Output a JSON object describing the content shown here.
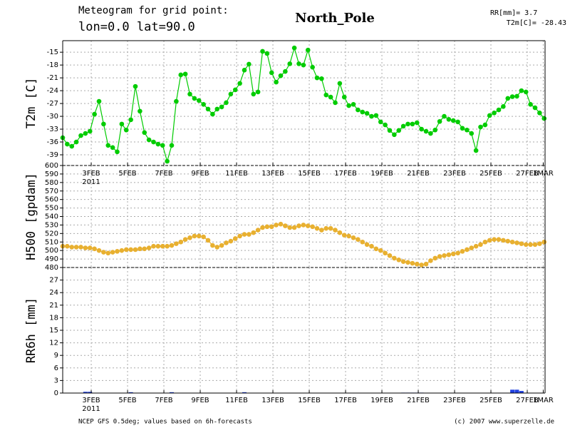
{
  "header": {
    "line1": "Meteogram for grid point:",
    "line2": "lon=0.0 lat=90.0",
    "location": "North_Pole",
    "summary1": "RR[mm]= 3.7",
    "summary2": "T2m[C]= -28.43"
  },
  "footer": {
    "left": "NCEP GFS 0.5deg; values based on 6h-forecasts",
    "right": "(c) 2007 www.superzelle.de"
  },
  "chart_data": {
    "type": "meteogram",
    "year_label": "2011",
    "x": [
      0,
      0.25,
      0.5,
      0.75,
      1,
      1.25,
      1.5,
      1.75,
      2,
      2.25,
      2.5,
      2.75,
      3,
      3.25,
      3.5,
      3.75,
      4,
      4.25,
      4.5,
      4.75,
      5,
      5.25,
      5.5,
      5.75,
      6,
      6.25,
      6.5,
      6.75,
      7,
      7.25,
      7.5,
      7.75,
      8,
      8.25,
      8.5,
      8.75,
      9,
      9.25,
      9.5,
      9.75,
      10,
      10.25,
      10.5,
      10.75,
      11,
      11.25,
      11.5,
      11.75,
      12,
      12.25,
      12.5,
      12.75,
      13,
      13.25,
      13.5,
      13.75,
      14,
      14.25,
      14.5,
      14.75,
      15,
      15.25,
      15.5,
      15.75,
      16,
      16.25,
      16.5,
      16.75,
      17,
      17.25,
      17.5,
      17.75,
      18,
      18.25,
      18.5,
      18.75,
      19,
      19.25,
      19.5,
      19.75,
      20,
      20.25,
      20.5,
      20.75,
      21,
      21.25,
      21.5,
      21.75,
      22,
      22.25,
      22.5,
      22.75,
      23,
      23.25,
      23.5,
      23.75,
      24,
      24.25,
      24.5,
      24.75,
      25,
      25.25,
      25.5,
      25.75,
      26,
      26.25,
      26.5
    ],
    "xlim": [
      0,
      26.55
    ],
    "xticks": [
      {
        "value": 1.57,
        "label": "3FEB"
      },
      {
        "value": 3.57,
        "label": "5FEB"
      },
      {
        "value": 5.57,
        "label": "7FEB"
      },
      {
        "value": 7.57,
        "label": "9FEB"
      },
      {
        "value": 9.57,
        "label": "11FEB"
      },
      {
        "value": 11.57,
        "label": "13FEB"
      },
      {
        "value": 13.57,
        "label": "15FEB"
      },
      {
        "value": 15.57,
        "label": "17FEB"
      },
      {
        "value": 17.57,
        "label": "19FEB"
      },
      {
        "value": 19.57,
        "label": "21FEB"
      },
      {
        "value": 21.57,
        "label": "23FEB"
      },
      {
        "value": 23.57,
        "label": "25FEB"
      },
      {
        "value": 25.57,
        "label": "27FEB"
      },
      {
        "value": 26.45,
        "label": "1MAR"
      }
    ],
    "grid": true,
    "panels": [
      {
        "type": "line",
        "ylabel": "T2m [C]",
        "color": "#00cc00",
        "ylim": [
          -41.5,
          -12.3
        ],
        "yticks": [
          -39,
          -36,
          -33,
          -30,
          -27,
          -24,
          -21,
          -18,
          -15
        ],
        "values": [
          -35,
          -36.5,
          -37,
          -36,
          -34.5,
          -34,
          -33.5,
          -29.5,
          -26.5,
          -31.8,
          -36.8,
          -37.3,
          -38.3,
          -31.8,
          -33.2,
          -30.8,
          -23,
          -28.8,
          -33.8,
          -35.5,
          -36,
          -36.5,
          -36.8,
          -40.5,
          -36.8,
          -26.5,
          -20.3,
          -20.1,
          -24.8,
          -25.8,
          -26.3,
          -27.2,
          -28.3,
          -29.5,
          -28.3,
          -27.8,
          -26.8,
          -24.8,
          -23.8,
          -22.3,
          -19.2,
          -17.8,
          -24.8,
          -24.3,
          -14.8,
          -15.3,
          -19.8,
          -22,
          -20.5,
          -19.5,
          -17.7,
          -14,
          -17.7,
          -18,
          -14.5,
          -18.5,
          -21,
          -21.2,
          -25,
          -25.5,
          -26.8,
          -22.3,
          -25.5,
          -27.5,
          -27.2,
          -28.5,
          -29,
          -29.3,
          -30,
          -29.8,
          -31.3,
          -32,
          -33.3,
          -34.3,
          -33.3,
          -32.3,
          -31.8,
          -31.8,
          -31.5,
          -33,
          -33.5,
          -34,
          -33.2,
          -31.2,
          -30,
          -30.7,
          -31,
          -31.3,
          -32.8,
          -33.2,
          -34,
          -38,
          -32.5,
          -32,
          -29.8,
          -29.2,
          -28.5,
          -27.7,
          -25.8,
          -25.4,
          -25.3,
          -24,
          -24.3,
          -27.2,
          -28,
          -29.2,
          -30.5
        ]
      },
      {
        "type": "line",
        "ylabel": "H500 [gpdam]",
        "color": "#e8b030",
        "ylim": [
          480,
          600
        ],
        "yticks": [
          480,
          490,
          500,
          510,
          520,
          530,
          540,
          550,
          560,
          570,
          580,
          590,
          600
        ],
        "values": [
          505,
          505,
          504,
          504,
          504,
          503,
          503,
          502,
          500,
          498,
          497,
          498,
          499,
          500,
          501,
          501,
          501,
          502,
          502,
          503,
          505,
          505,
          505,
          505,
          506,
          508,
          510,
          513,
          515,
          517,
          517,
          516,
          512,
          506,
          504,
          506,
          509,
          511,
          514,
          517,
          519,
          519,
          521,
          524,
          527,
          528,
          528,
          530,
          531,
          529,
          527,
          527,
          529,
          530,
          529,
          528,
          526,
          524,
          526,
          526,
          524,
          521,
          518,
          517,
          515,
          513,
          510,
          507,
          505,
          502,
          500,
          497,
          494,
          491,
          489,
          487,
          486,
          485,
          484,
          483,
          484,
          488,
          491,
          493,
          494,
          495,
          496,
          497,
          499,
          501,
          503,
          505,
          507,
          510,
          512,
          513,
          513,
          512,
          511,
          510,
          509,
          508,
          507,
          507,
          507,
          508,
          510
        ]
      },
      {
        "type": "bar",
        "ylabel": "RR6h [mm]",
        "color": "#2040e0",
        "ylim": [
          0,
          30
        ],
        "yticks": [
          0,
          3,
          6,
          9,
          12,
          15,
          18,
          21,
          24,
          27
        ],
        "values": [
          0,
          0,
          0,
          0,
          0,
          0.3,
          0.3,
          0,
          0,
          0,
          0,
          0,
          0,
          0,
          0,
          0.2,
          0,
          0,
          0,
          0,
          0,
          0,
          0,
          0,
          0.2,
          0,
          0,
          0,
          0,
          0,
          0,
          0,
          0,
          0,
          0,
          0,
          0,
          0,
          0,
          0,
          0.2,
          0,
          0,
          0,
          0,
          0,
          0,
          0,
          0,
          0,
          0,
          0,
          0,
          0,
          0,
          0,
          0,
          0,
          0,
          0,
          0,
          0,
          0,
          0,
          0,
          0,
          0,
          0,
          0,
          0,
          0,
          0,
          0,
          0,
          0,
          0.1,
          0.1,
          0.1,
          0.1,
          0.1,
          0,
          0,
          0,
          0,
          0,
          0,
          0,
          0,
          0,
          0,
          0,
          0,
          0,
          0,
          0,
          0,
          0,
          0,
          0,
          0.8,
          0.8,
          0.5,
          0,
          0,
          0,
          0,
          0
        ]
      }
    ]
  }
}
